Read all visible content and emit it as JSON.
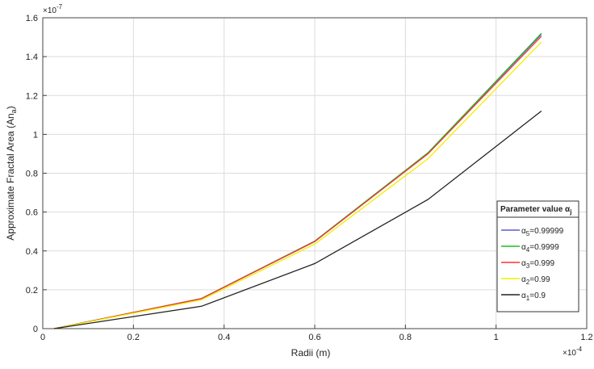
{
  "chart_data": {
    "type": "line",
    "xlabel": "Radii (m)",
    "ylabel": "Approximate Fractal Area  (An",
    "ylabel_sub": "a",
    "ylabel_close": ")",
    "x_exponent": "×10",
    "x_exponent_power": "-4",
    "y_exponent": "×10",
    "y_exponent_power": "-7",
    "xlim": [
      0,
      1.2
    ],
    "ylim": [
      0,
      1.6
    ],
    "xticks": [
      0,
      0.2,
      0.4,
      0.6,
      0.8,
      1,
      1.2
    ],
    "yticks": [
      0,
      0.2,
      0.4,
      0.6,
      0.8,
      1,
      1.2,
      1.4,
      1.6
    ],
    "grid": true,
    "legend_placement": "right",
    "legend_title": "Parameter value α",
    "legend_title_sub": "j",
    "x": [
      0.025,
      0.35,
      0.6,
      0.85,
      1.1
    ],
    "series": [
      {
        "name": "α",
        "sub": "5",
        "suffix": "=0.99999",
        "color": "#5b5bd6",
        "values": [
          0,
          0.155,
          0.45,
          0.905,
          1.515
        ]
      },
      {
        "name": "α",
        "sub": "4",
        "suffix": "=0.9999",
        "color": "#22bb22",
        "values": [
          0,
          0.155,
          0.45,
          0.905,
          1.52
        ]
      },
      {
        "name": "α",
        "sub": "3",
        "suffix": "=0.999",
        "color": "#ff3030",
        "values": [
          0,
          0.154,
          0.448,
          0.9,
          1.505
        ]
      },
      {
        "name": "α",
        "sub": "2",
        "suffix": "=0.99",
        "color": "#f0f000",
        "values": [
          0,
          0.148,
          0.435,
          0.875,
          1.475
        ]
      },
      {
        "name": "α",
        "sub": "1",
        "suffix": "=0.9",
        "color": "#222222",
        "values": [
          0,
          0.115,
          0.335,
          0.665,
          1.12
        ]
      }
    ]
  }
}
